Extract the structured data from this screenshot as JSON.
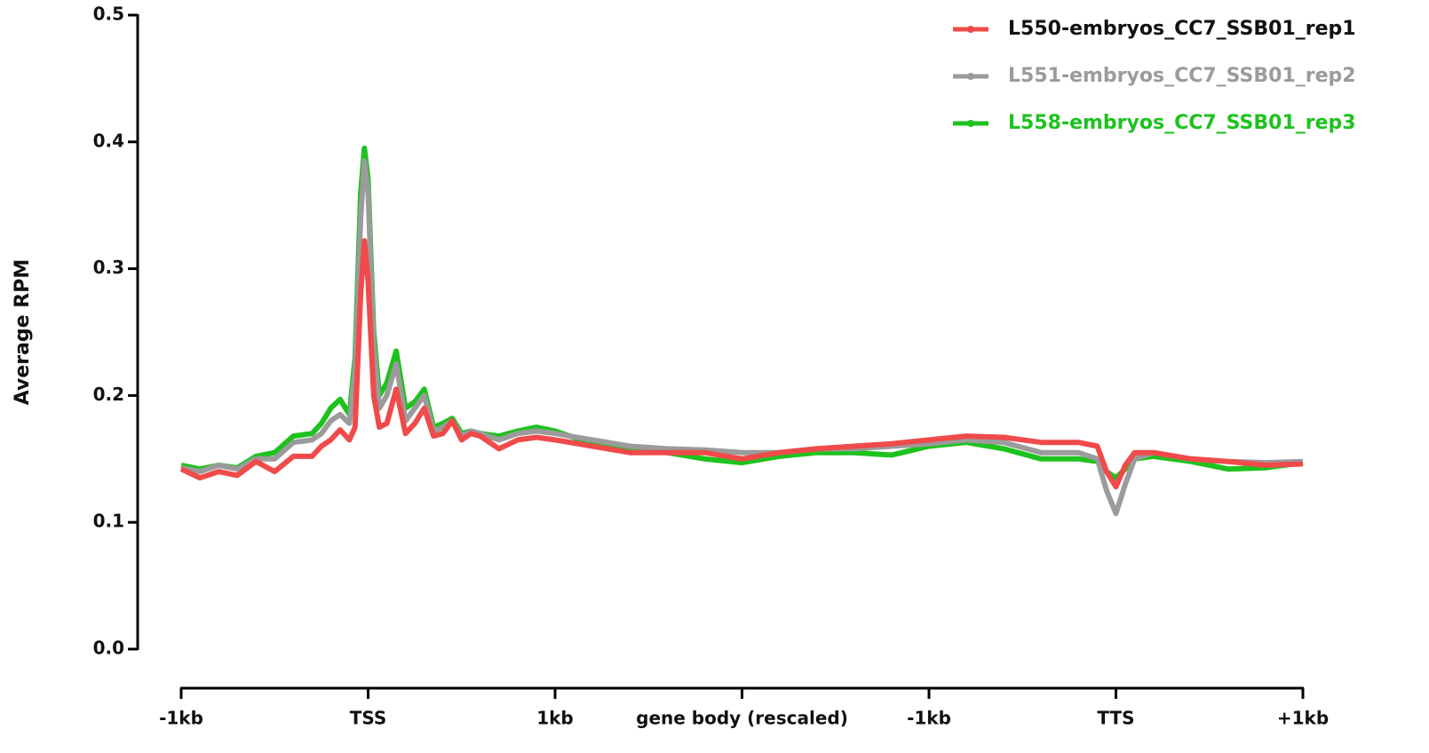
{
  "chart_data": {
    "type": "line",
    "ylabel": "Average RPM",
    "ylim": [
      0,
      0.5
    ],
    "yticks": [
      {
        "value": 0,
        "label": "0.0"
      },
      0.1,
      0.2,
      0.3,
      0.4,
      0.5
    ],
    "xlim": [
      0,
      6
    ],
    "xticks": [
      {
        "value": 0,
        "label": "-1kb"
      },
      {
        "value": 1,
        "label": "TSS"
      },
      {
        "value": 2,
        "label": "1kb"
      },
      {
        "value": 3,
        "label": "gene body (rescaled)"
      },
      {
        "value": 4,
        "label": "-1kb"
      },
      {
        "value": 5,
        "label": "TTS"
      },
      {
        "value": 6,
        "label": "+1kb"
      }
    ],
    "x": [
      0,
      0.1,
      0.2,
      0.3,
      0.4,
      0.5,
      0.6,
      0.7,
      0.75,
      0.8,
      0.85,
      0.9,
      0.93,
      0.96,
      0.98,
      1.0,
      1.03,
      1.06,
      1.1,
      1.15,
      1.2,
      1.25,
      1.3,
      1.35,
      1.4,
      1.45,
      1.5,
      1.55,
      1.6,
      1.7,
      1.8,
      1.9,
      2.0,
      2.2,
      2.4,
      2.6,
      2.8,
      3.0,
      3.2,
      3.4,
      3.6,
      3.8,
      4.0,
      4.2,
      4.4,
      4.6,
      4.8,
      4.9,
      4.95,
      5.0,
      5.05,
      5.1,
      5.2,
      5.4,
      5.6,
      5.8,
      6.0
    ],
    "legend": "top-right",
    "series": [
      {
        "name": "L550-embryos_CC7_SSB01_rep1",
        "color": "#f04a4a",
        "values": [
          0.142,
          0.135,
          0.14,
          0.137,
          0.148,
          0.14,
          0.152,
          0.152,
          0.16,
          0.165,
          0.173,
          0.165,
          0.175,
          0.28,
          0.322,
          0.29,
          0.2,
          0.175,
          0.178,
          0.205,
          0.17,
          0.178,
          0.19,
          0.168,
          0.17,
          0.18,
          0.165,
          0.17,
          0.168,
          0.158,
          0.165,
          0.167,
          0.165,
          0.16,
          0.155,
          0.155,
          0.155,
          0.15,
          0.155,
          0.158,
          0.16,
          0.162,
          0.165,
          0.168,
          0.167,
          0.163,
          0.163,
          0.16,
          0.14,
          0.128,
          0.145,
          0.155,
          0.155,
          0.15,
          0.148,
          0.145,
          0.146
        ]
      },
      {
        "name": "L551-embryos_CC7_SSB01_rep2",
        "color": "#9b9b9b",
        "values": [
          0.143,
          0.14,
          0.145,
          0.142,
          0.15,
          0.15,
          0.163,
          0.165,
          0.17,
          0.18,
          0.185,
          0.178,
          0.22,
          0.34,
          0.385,
          0.36,
          0.24,
          0.19,
          0.2,
          0.225,
          0.18,
          0.19,
          0.2,
          0.172,
          0.175,
          0.18,
          0.168,
          0.172,
          0.17,
          0.165,
          0.17,
          0.172,
          0.17,
          0.165,
          0.16,
          0.158,
          0.157,
          0.155,
          0.155,
          0.158,
          0.158,
          0.16,
          0.162,
          0.165,
          0.163,
          0.155,
          0.155,
          0.15,
          0.125,
          0.107,
          0.13,
          0.15,
          0.155,
          0.15,
          0.148,
          0.147,
          0.148
        ]
      },
      {
        "name": "L558-embryos_CC7_SSB01_rep3",
        "color": "#1ec21e",
        "values": [
          0.145,
          0.142,
          0.145,
          0.143,
          0.152,
          0.155,
          0.168,
          0.17,
          0.178,
          0.19,
          0.197,
          0.185,
          0.23,
          0.36,
          0.395,
          0.37,
          0.25,
          0.2,
          0.21,
          0.235,
          0.19,
          0.195,
          0.205,
          0.175,
          0.178,
          0.182,
          0.17,
          0.172,
          0.17,
          0.168,
          0.172,
          0.175,
          0.172,
          0.162,
          0.158,
          0.155,
          0.15,
          0.147,
          0.152,
          0.155,
          0.155,
          0.153,
          0.16,
          0.163,
          0.158,
          0.15,
          0.15,
          0.148,
          0.14,
          0.135,
          0.142,
          0.15,
          0.152,
          0.148,
          0.142,
          0.143,
          0.147
        ]
      }
    ]
  }
}
